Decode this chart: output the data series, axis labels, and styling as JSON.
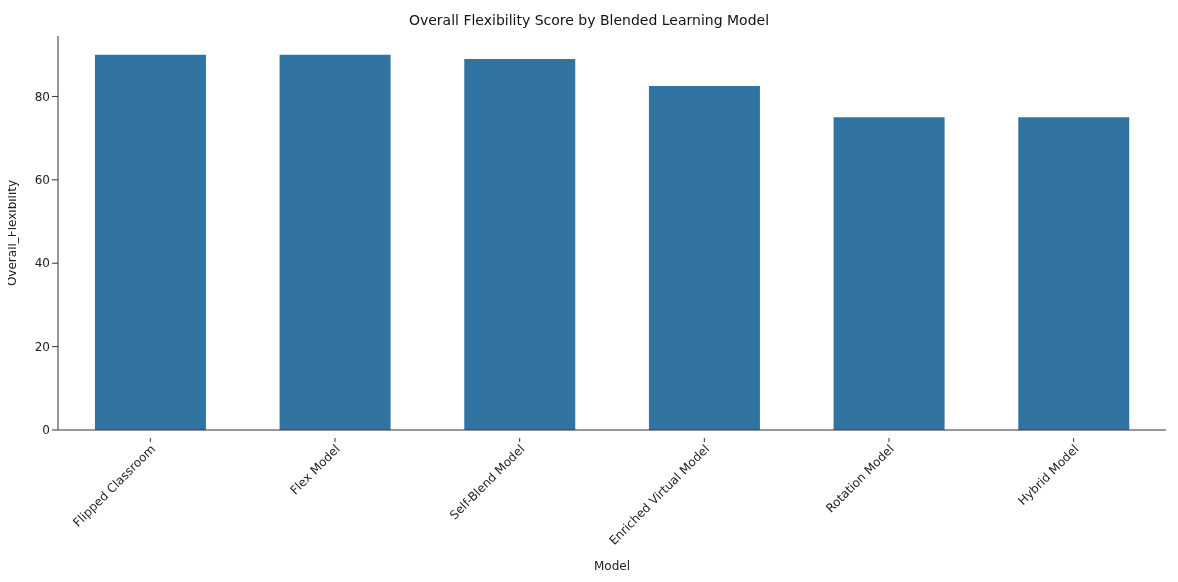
{
  "chart_data": {
    "type": "bar",
    "title": "Overall Flexibility Score by Blended Learning Model",
    "xlabel": "Model",
    "ylabel": "Overall_Flexibility",
    "categories": [
      "Flipped Classroom",
      "Flex Model",
      "Self-Blend Model",
      "Enriched Virtual Model",
      "Rotation Model",
      "Hybrid Model"
    ],
    "values": [
      90,
      90,
      89,
      82.5,
      75,
      75
    ],
    "color": "#3274a1",
    "ylim": [
      0,
      94.5
    ],
    "yticks": [
      0,
      20,
      40,
      60,
      80
    ],
    "grid": false,
    "legend": false
  }
}
